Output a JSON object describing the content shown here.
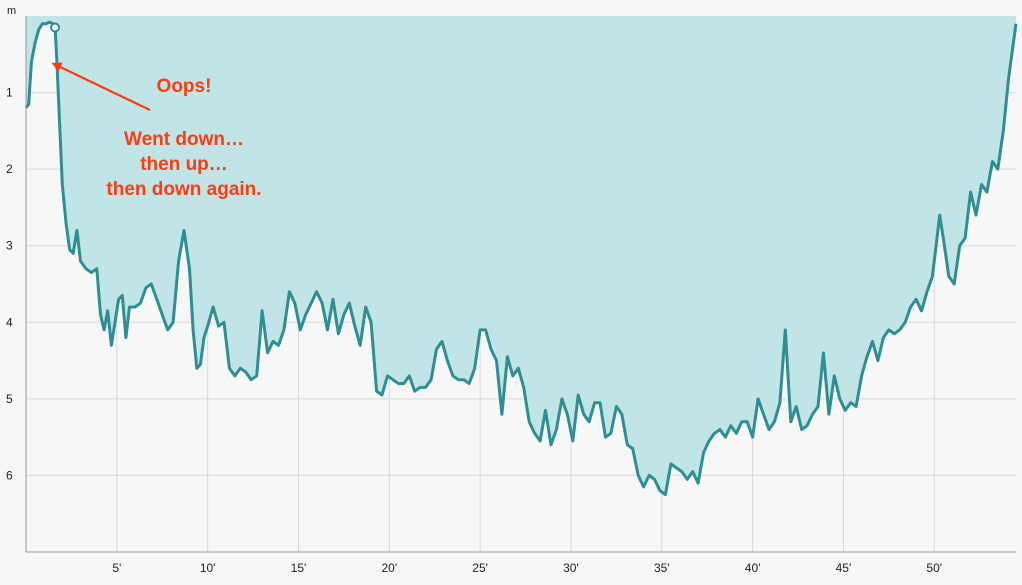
{
  "colors": {
    "area_fill": "#c1e4e6",
    "line": "#2e8f93",
    "grid": "#d8d8d8",
    "annotation": "#ff3b0f",
    "background": "#f7f7f7"
  },
  "chart_data": {
    "type": "area",
    "title": "",
    "xlabel": "",
    "ylabel": "m",
    "xlim": [
      0,
      54.5
    ],
    "ylim": [
      0,
      7
    ],
    "y_inverted": true,
    "grid": true,
    "x_tick_labels": [
      "5'",
      "10'",
      "15'",
      "20'",
      "25'",
      "30'",
      "35'",
      "40'",
      "45'",
      "50'"
    ],
    "x_ticks": [
      5,
      10,
      15,
      20,
      25,
      30,
      35,
      40,
      45,
      50
    ],
    "y_tick_labels": [
      "1",
      "2",
      "3",
      "4",
      "5",
      "6"
    ],
    "y_ticks": [
      1,
      2,
      3,
      4,
      5,
      6
    ],
    "series": [
      {
        "x": [
          0,
          0.15,
          0.3,
          0.5,
          0.7,
          0.9,
          1.1,
          1.3,
          1.5,
          1.6,
          1.7,
          1.85,
          2.0,
          2.2,
          2.4,
          2.6,
          2.8,
          3.0,
          3.3,
          3.6,
          3.9,
          4.1,
          4.3,
          4.5,
          4.7,
          4.9,
          5.1,
          5.3,
          5.5,
          5.7,
          6.0,
          6.3,
          6.6,
          6.9,
          7.2,
          7.5,
          7.8,
          8.1,
          8.4,
          8.7,
          9.0,
          9.2,
          9.4,
          9.6,
          9.8,
          10.0,
          10.3,
          10.6,
          10.9,
          11.2,
          11.5,
          11.8,
          12.1,
          12.4,
          12.7,
          13.0,
          13.3,
          13.6,
          13.9,
          14.2,
          14.5,
          14.8,
          15.1,
          15.4,
          15.7,
          16.0,
          16.3,
          16.6,
          16.9,
          17.2,
          17.5,
          17.8,
          18.1,
          18.4,
          18.7,
          19.0,
          19.3,
          19.6,
          19.9,
          20.2,
          20.5,
          20.8,
          21.1,
          21.4,
          21.7,
          22.0,
          22.3,
          22.6,
          22.9,
          23.2,
          23.5,
          23.8,
          24.1,
          24.4,
          24.7,
          25.0,
          25.3,
          25.6,
          25.9,
          26.2,
          26.5,
          26.8,
          27.1,
          27.4,
          27.7,
          28.0,
          28.3,
          28.6,
          28.9,
          29.2,
          29.5,
          29.8,
          30.1,
          30.4,
          30.7,
          31.0,
          31.3,
          31.6,
          31.9,
          32.2,
          32.5,
          32.8,
          33.1,
          33.4,
          33.7,
          34.0,
          34.3,
          34.6,
          34.9,
          35.2,
          35.5,
          35.8,
          36.1,
          36.4,
          36.7,
          37.0,
          37.3,
          37.6,
          37.9,
          38.2,
          38.5,
          38.8,
          39.1,
          39.4,
          39.7,
          40.0,
          40.3,
          40.6,
          40.9,
          41.2,
          41.5,
          41.8,
          42.1,
          42.4,
          42.7,
          43.0,
          43.3,
          43.6,
          43.9,
          44.2,
          44.5,
          44.8,
          45.1,
          45.4,
          45.7,
          46.0,
          46.3,
          46.6,
          46.9,
          47.2,
          47.5,
          47.8,
          48.1,
          48.4,
          48.7,
          49.0,
          49.3,
          49.6,
          49.9,
          50.1,
          50.3,
          50.5,
          50.8,
          51.1,
          51.4,
          51.7,
          52.0,
          52.3,
          52.6,
          52.9,
          53.2,
          53.5,
          53.8,
          54.1,
          54.5
        ],
        "y": [
          1.2,
          1.15,
          0.6,
          0.35,
          0.18,
          0.1,
          0.1,
          0.08,
          0.1,
          0.15,
          0.6,
          1.4,
          2.2,
          2.7,
          3.05,
          3.1,
          2.8,
          3.2,
          3.3,
          3.35,
          3.3,
          3.9,
          4.1,
          3.85,
          4.3,
          4.0,
          3.7,
          3.65,
          4.2,
          3.8,
          3.8,
          3.75,
          3.55,
          3.5,
          3.7,
          3.9,
          4.1,
          4.0,
          3.2,
          2.8,
          3.3,
          4.1,
          4.6,
          4.55,
          4.2,
          4.05,
          3.8,
          4.05,
          4.0,
          4.6,
          4.7,
          4.6,
          4.65,
          4.75,
          4.7,
          3.85,
          4.4,
          4.25,
          4.3,
          4.1,
          3.6,
          3.75,
          4.1,
          3.9,
          3.75,
          3.6,
          3.75,
          4.1,
          3.7,
          4.15,
          3.9,
          3.75,
          4.05,
          4.3,
          3.8,
          4.0,
          4.9,
          4.95,
          4.7,
          4.75,
          4.8,
          4.8,
          4.7,
          4.9,
          4.85,
          4.85,
          4.75,
          4.35,
          4.25,
          4.5,
          4.7,
          4.75,
          4.75,
          4.8,
          4.6,
          4.1,
          4.1,
          4.35,
          4.5,
          5.2,
          4.45,
          4.7,
          4.6,
          4.85,
          5.3,
          5.45,
          5.55,
          5.15,
          5.6,
          5.4,
          5.0,
          5.2,
          5.55,
          4.95,
          5.2,
          5.3,
          5.05,
          5.05,
          5.5,
          5.45,
          5.1,
          5.2,
          5.6,
          5.65,
          6.0,
          6.15,
          6.0,
          6.05,
          6.2,
          6.25,
          5.85,
          5.9,
          5.95,
          6.05,
          5.95,
          6.1,
          5.7,
          5.55,
          5.45,
          5.4,
          5.5,
          5.35,
          5.45,
          5.3,
          5.3,
          5.5,
          5.0,
          5.2,
          5.4,
          5.3,
          5.05,
          4.1,
          5.3,
          5.1,
          5.4,
          5.35,
          5.2,
          5.1,
          4.4,
          5.2,
          4.7,
          5.0,
          5.15,
          5.05,
          5.1,
          4.7,
          4.45,
          4.25,
          4.5,
          4.2,
          4.1,
          4.15,
          4.1,
          4.0,
          3.8,
          3.7,
          3.85,
          3.6,
          3.4,
          3.0,
          2.6,
          2.9,
          3.4,
          3.5,
          3.0,
          2.9,
          2.3,
          2.6,
          2.2,
          2.3,
          1.9,
          2.0,
          1.5,
          0.8,
          0.1
        ]
      }
    ],
    "annotations": [
      {
        "text": "Oops!"
      },
      {
        "text": "Went down…"
      },
      {
        "text": "then up…"
      },
      {
        "text": "then down again."
      }
    ],
    "highlight_point": {
      "x": 1.6,
      "y": 0.15
    }
  }
}
